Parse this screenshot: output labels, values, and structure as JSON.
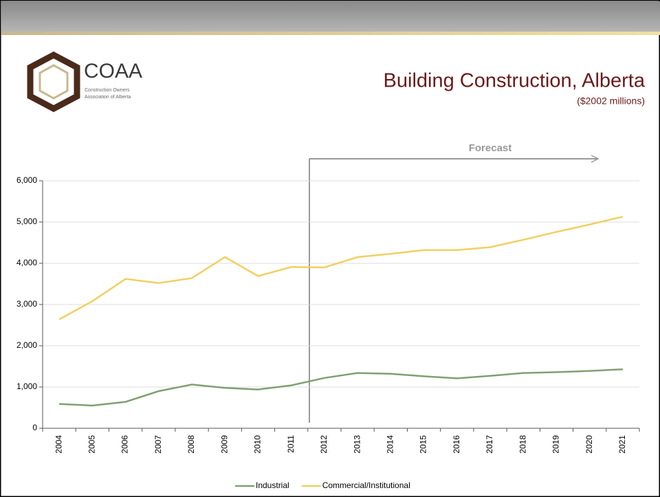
{
  "logo": {
    "name": "COAA",
    "line1": "Construction Owners",
    "line2": "Association of Alberta"
  },
  "chart_data": {
    "type": "line",
    "title": "Building Construction, Alberta",
    "subtitle": "($2002 millions)",
    "annotation": "Forecast",
    "categories": [
      "2004",
      "2005",
      "2006",
      "2007",
      "2008",
      "2009",
      "2010",
      "2011",
      "2012",
      "2013",
      "2014",
      "2015",
      "2016",
      "2017",
      "2018",
      "2019",
      "2020",
      "2021"
    ],
    "series": [
      {
        "name": "Industrial",
        "color": "#7fa071",
        "values": [
          590,
          550,
          640,
          900,
          1060,
          980,
          940,
          1040,
          1220,
          1340,
          1320,
          1260,
          1210,
          1270,
          1340,
          1360,
          1390,
          1430
        ]
      },
      {
        "name": "Commercial/Institutional",
        "color": "#f0d060",
        "values": [
          2640,
          3080,
          3620,
          3520,
          3640,
          4150,
          3690,
          3910,
          3900,
          4150,
          4230,
          4320,
          4320,
          4390,
          4570,
          4760,
          4940,
          5130
        ]
      }
    ],
    "ylim": [
      0,
      6000
    ],
    "yticks": [
      0,
      {
        "value": 1000,
        "label": "1,000"
      },
      {
        "value": 2000,
        "label": "2,000"
      },
      {
        "value": 3000,
        "label": "3,000"
      },
      {
        "value": 4000,
        "label": "4,000"
      },
      {
        "value": 5000,
        "label": "5,000"
      },
      {
        "value": 6000,
        "label": "6,000"
      }
    ],
    "grid": true,
    "legend": "bottom"
  }
}
